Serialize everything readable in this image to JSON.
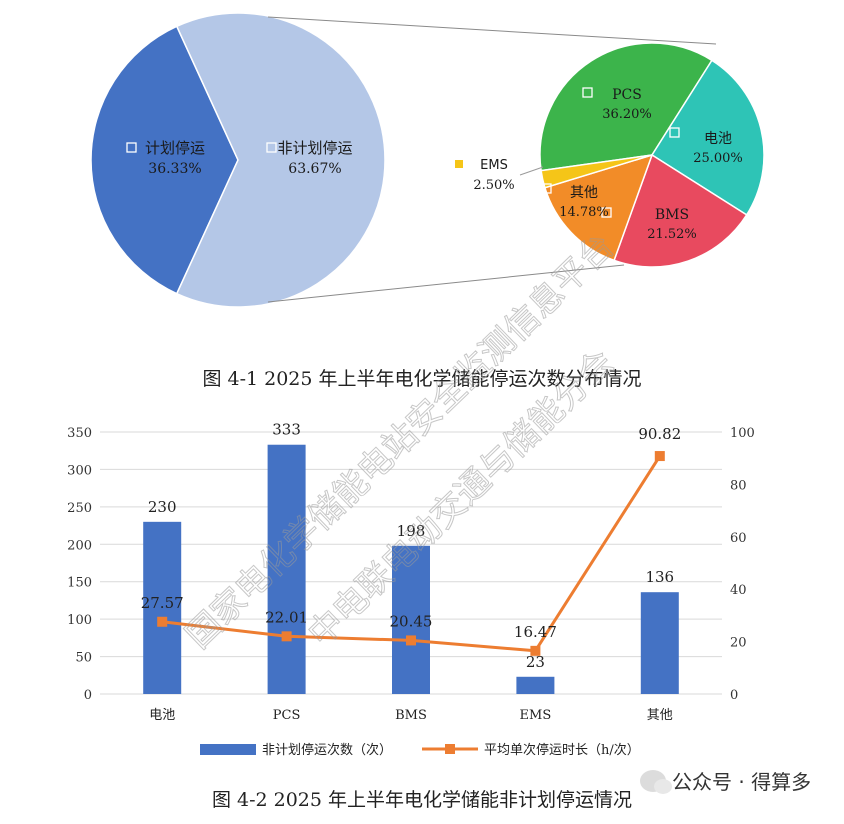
{
  "figure1": {
    "caption": "图 4-1 2025 年上半年电化学储能停运次数分布情况",
    "main_pie": {
      "type": "pie",
      "slices": [
        {
          "label": "计划停运",
          "value": 36.33,
          "display": "36.33%",
          "color": "#4472C4"
        },
        {
          "label": "非计划停运",
          "value": 63.67,
          "display": "63.67%",
          "color": "#B4C7E7"
        }
      ]
    },
    "sub_pie": {
      "type": "pie",
      "slices": [
        {
          "label": "PCS",
          "value": 36.2,
          "display": "36.20%",
          "color": "#3CB44B"
        },
        {
          "label": "电池",
          "value": 25.0,
          "display": "25.00%",
          "color": "#2EC4B6"
        },
        {
          "label": "BMS",
          "value": 21.52,
          "display": "21.52%",
          "color": "#E84A5F"
        },
        {
          "label": "其他",
          "value": 14.78,
          "display": "14.78%",
          "color": "#F28C28"
        },
        {
          "label": "EMS",
          "value": 2.5,
          "display": "2.50%",
          "color": "#F5C518"
        }
      ]
    }
  },
  "chart_data": {
    "type": "bar",
    "categories": [
      "电池",
      "PCS",
      "BMS",
      "EMS",
      "其他"
    ],
    "series": [
      {
        "name": "非计划停运次数（次）",
        "type": "bar",
        "axis": "left",
        "values": [
          230,
          333,
          198,
          23,
          136
        ],
        "labels": [
          "230",
          "333",
          "198",
          "23",
          "136"
        ],
        "color": "#4472C4"
      },
      {
        "name": "平均单次停运时长（h/次）",
        "type": "line",
        "axis": "right",
        "values": [
          27.57,
          22.01,
          20.45,
          16.47,
          90.82
        ],
        "labels": [
          "27.57",
          "22.01",
          "20.45",
          "16.47",
          "90.82"
        ],
        "color": "#ED7D31"
      }
    ],
    "ylim_left": [
      0,
      350
    ],
    "yticks_left": [
      "0",
      "50",
      "100",
      "150",
      "200",
      "250",
      "300",
      "350"
    ],
    "ylim_right": [
      0,
      100
    ],
    "yticks_right": [
      "0",
      "20",
      "40",
      "60",
      "80",
      "100"
    ],
    "grid": true,
    "legend_position": "bottom"
  },
  "figure2": {
    "caption": "图 4-2 2025 年上半年电化学储能非计划停运情况"
  },
  "watermark": {
    "line1": "国家电化学储能电站安全监测信息平台",
    "line2": "中电联电动交通与储能分会"
  },
  "footer": {
    "text": "公众号 · 得算多",
    "icon": "wechat-icon"
  }
}
